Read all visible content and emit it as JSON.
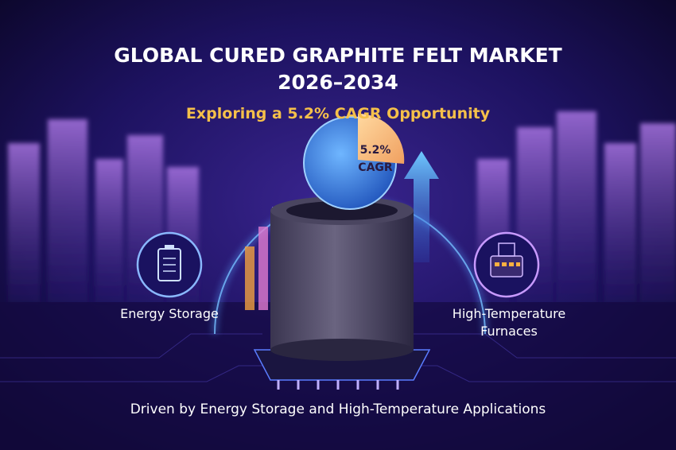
{
  "header": {
    "title_line1": "GLOBAL CURED GRAPHITE FELT MARKET",
    "title_line2": "2026–2034",
    "subtitle": "Exploring a 5.2% CAGR Opportunity"
  },
  "badge": {
    "value": "5.2%",
    "label": "CAGR"
  },
  "features": [
    {
      "lines": [
        "Energy Storage"
      ]
    },
    {
      "lines": [
        "High-Temperature",
        "Furnaces"
      ]
    }
  ],
  "footer": {
    "caption": "Driven by Energy Storage and High-Temperature Applications"
  }
}
